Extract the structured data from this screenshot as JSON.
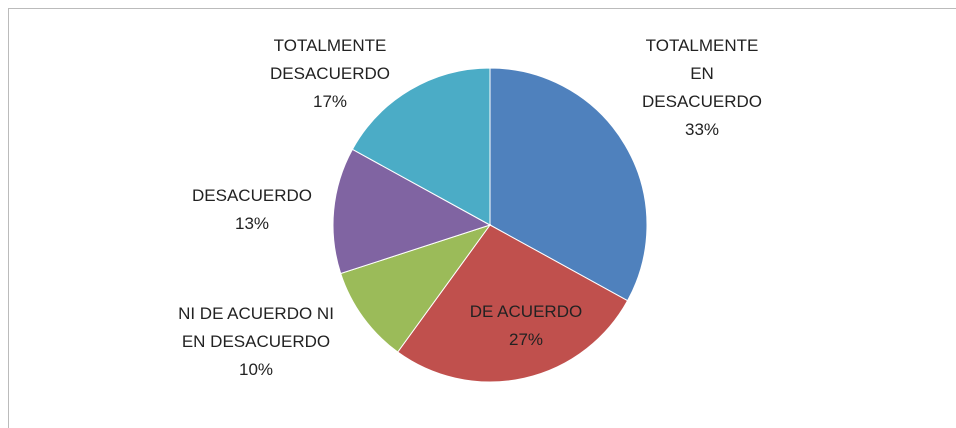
{
  "chart_data": {
    "type": "pie",
    "categories": [
      "TOTALMENTE EN DESACUERDO",
      "DE ACUERDO",
      "NI DE ACUERDO NI EN DESACUERDO",
      "DESACUERDO",
      "TOTALMENTE DESACUERDO"
    ],
    "values": [
      33,
      27,
      10,
      13,
      17
    ],
    "value_labels": [
      "33%",
      "27%",
      "10%",
      "13%",
      "17%"
    ],
    "colors": [
      "#4f81bd",
      "#c0504d",
      "#9bbb59",
      "#8064a2",
      "#4bacc6"
    ]
  }
}
